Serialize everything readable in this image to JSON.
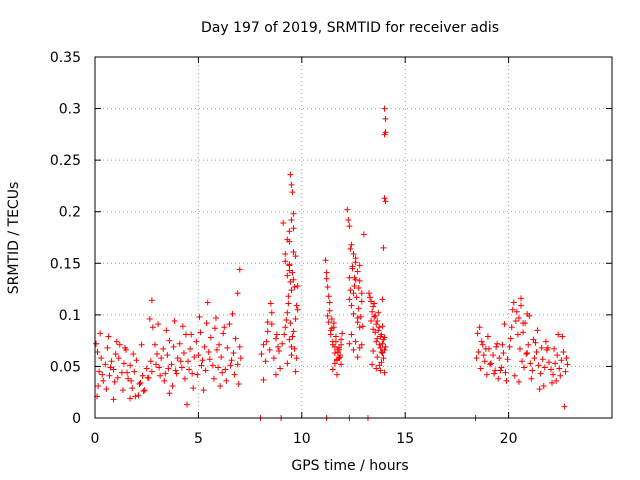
{
  "colors": {
    "series": "#ff0000",
    "grid": "#a0a0a0",
    "frame": "#000000"
  },
  "chart_data": {
    "type": "scatter",
    "title": "Day 197 of 2019, SRMTID for receiver adis",
    "xlabel": "GPS time / hours",
    "ylabel": "SRMTID / TECUs",
    "xlim": [
      0,
      25
    ],
    "ylim": [
      0,
      0.35
    ],
    "xticks": [
      0,
      5,
      10,
      15,
      20
    ],
    "xtick_labels": [
      "0",
      "5",
      "10",
      "15",
      "20"
    ],
    "yticks": [
      0,
      0.05,
      0.1,
      0.15,
      0.2,
      0.25,
      0.3,
      0.35
    ],
    "ytick_labels": [
      "0",
      "0.05",
      "0.1",
      "0.15",
      "0.2",
      "0.25",
      "0.3",
      "0.35"
    ],
    "grid": true,
    "marker": "+",
    "series": [
      {
        "name": "SRMTID",
        "x": [
          0.05,
          0.12,
          0.2,
          0.3,
          0.4,
          0.5,
          0.6,
          0.7,
          0.8,
          0.9,
          1.0,
          1.1,
          1.2,
          1.3,
          1.4,
          1.5,
          1.6,
          1.7,
          1.8,
          1.9,
          2.0,
          2.1,
          2.2,
          2.3,
          2.4,
          2.5,
          2.6,
          2.7,
          2.8,
          2.9,
          3.0,
          3.1,
          3.2,
          3.3,
          3.4,
          3.5,
          3.6,
          3.7,
          3.8,
          3.9,
          4.0,
          4.1,
          4.2,
          4.3,
          4.4,
          4.5,
          4.6,
          4.7,
          4.8,
          4.9,
          5.0,
          5.1,
          5.2,
          5.3,
          5.4,
          5.5,
          5.6,
          5.7,
          5.8,
          5.9,
          6.0,
          6.1,
          6.2,
          6.3,
          6.4,
          6.5,
          6.6,
          6.7,
          6.8,
          6.9,
          7.0,
          7.05,
          0.15,
          0.35,
          0.55,
          0.75,
          0.95,
          1.15,
          1.35,
          1.55,
          1.75,
          1.95,
          2.15,
          2.35,
          2.55,
          2.75,
          2.95,
          3.15,
          3.35,
          3.55,
          3.75,
          3.95,
          4.15,
          4.35,
          4.55,
          4.75,
          4.95,
          5.15,
          5.35,
          5.55,
          5.75,
          5.95,
          6.15,
          6.35,
          6.55,
          6.75,
          6.95,
          0.25,
          0.65,
          1.05,
          1.45,
          1.85,
          2.25,
          2.65,
          3.05,
          3.45,
          3.85,
          4.25,
          4.65,
          5.05,
          5.45,
          5.85,
          6.25,
          6.65,
          0.1,
          0.9,
          1.7,
          2.75,
          3.6,
          4.45,
          5.25,
          6.05,
          6.9,
          7.0,
          8.05,
          8.15,
          8.25,
          8.35,
          8.45,
          8.55,
          8.65,
          8.75,
          8.85,
          8.95,
          8.15,
          8.35,
          8.55,
          8.75,
          8.5,
          8.8,
          8.3,
          8.9,
          9.05,
          9.15,
          9.25,
          9.35,
          9.45,
          9.55,
          9.65,
          9.75,
          9.1,
          9.2,
          9.3,
          9.4,
          9.5,
          9.6,
          9.7,
          9.2,
          9.3,
          9.4,
          9.5,
          9.6,
          9.3,
          9.4,
          9.5,
          9.4,
          9.45,
          9.5,
          9.55,
          9.6,
          9.7,
          9.8,
          9.35,
          9.45,
          9.55,
          9.65,
          9.75,
          9.3,
          9.5,
          9.7,
          9.4,
          9.6,
          9.8,
          9.2,
          9.4,
          9.6,
          11.15,
          11.25,
          11.35,
          11.45,
          11.55,
          11.65,
          11.75,
          11.85,
          11.95,
          11.2,
          11.3,
          11.4,
          11.5,
          11.6,
          11.7,
          11.8,
          11.9,
          11.25,
          11.45,
          11.65,
          11.85,
          11.3,
          11.5,
          11.7,
          11.9,
          11.35,
          11.55,
          11.75,
          11.4,
          11.6,
          11.8,
          11.2,
          11.5,
          11.7,
          11.9,
          11.6,
          11.8,
          12.2,
          12.3,
          12.4,
          12.5,
          12.6,
          12.7,
          12.8,
          12.9,
          13.0,
          12.25,
          12.35,
          12.45,
          12.55,
          12.65,
          12.75,
          12.85,
          12.95,
          12.3,
          12.4,
          12.5,
          12.6,
          12.7,
          12.8,
          12.3,
          12.5,
          12.7,
          12.9,
          12.4,
          12.6,
          12.8,
          12.3,
          12.45,
          12.6,
          12.75,
          12.9,
          12.5,
          12.7,
          12.35,
          12.55,
          12.8,
          13.25,
          13.35,
          13.45,
          13.55,
          13.65,
          13.75,
          13.85,
          13.95,
          14.05,
          13.3,
          13.4,
          13.5,
          13.6,
          13.7,
          13.8,
          13.9,
          14.0,
          13.35,
          13.45,
          13.55,
          13.65,
          13.75,
          13.85,
          13.95,
          13.4,
          13.6,
          13.8,
          14.0,
          13.5,
          13.7,
          13.9,
          13.6,
          13.8,
          13.45,
          13.65,
          13.85,
          13.75,
          13.9,
          14.0,
          14.0,
          14.05,
          14.05,
          14.0,
          14.0,
          14.05,
          13.95,
          13.9,
          18.45,
          18.55,
          18.65,
          18.75,
          18.85,
          18.95,
          19.05,
          19.15,
          19.25,
          19.35,
          19.45,
          19.55,
          19.65,
          19.75,
          19.85,
          19.95,
          20.05,
          20.15,
          20.25,
          20.35,
          20.45,
          20.55,
          20.65,
          20.75,
          20.85,
          20.95,
          21.05,
          21.15,
          21.25,
          21.35,
          21.45,
          21.55,
          21.65,
          21.75,
          21.85,
          21.95,
          22.05,
          22.15,
          22.25,
          22.35,
          22.45,
          22.55,
          22.65,
          22.75,
          22.85,
          18.5,
          18.7,
          18.9,
          19.1,
          19.3,
          19.5,
          19.7,
          19.9,
          20.1,
          20.3,
          20.5,
          20.7,
          20.9,
          21.1,
          21.3,
          21.5,
          21.7,
          21.9,
          22.1,
          22.3,
          22.5,
          22.7,
          18.6,
          19.0,
          19.4,
          19.8,
          20.2,
          20.6,
          21.0,
          21.4,
          21.8,
          22.2,
          22.6,
          18.8,
          19.6,
          20.4,
          20.5,
          20.6,
          20.7,
          20.8,
          20.9,
          21.2,
          21.6,
          22.4,
          22.8,
          8.0,
          9.0,
          11.2,
          12.3,
          13.2,
          18.4
        ],
        "y": [
          0.072,
          0.064,
          0.045,
          0.058,
          0.036,
          0.052,
          0.068,
          0.041,
          0.055,
          0.047,
          0.062,
          0.039,
          0.071,
          0.044,
          0.053,
          0.066,
          0.038,
          0.051,
          0.029,
          0.045,
          0.056,
          0.022,
          0.034,
          0.041,
          0.027,
          0.048,
          0.039,
          0.055,
          0.088,
          0.071,
          0.062,
          0.049,
          0.058,
          0.067,
          0.043,
          0.061,
          0.075,
          0.052,
          0.069,
          0.046,
          0.058,
          0.072,
          0.049,
          0.063,
          0.081,
          0.055,
          0.067,
          0.043,
          0.059,
          0.074,
          0.061,
          0.083,
          0.056,
          0.069,
          0.092,
          0.064,
          0.078,
          0.051,
          0.087,
          0.066,
          0.071,
          0.059,
          0.082,
          0.047,
          0.068,
          0.091,
          0.056,
          0.063,
          0.077,
          0.052,
          0.069,
          0.058,
          0.031,
          0.042,
          0.028,
          0.049,
          0.035,
          0.058,
          0.027,
          0.044,
          0.036,
          0.021,
          0.033,
          0.026,
          0.039,
          0.045,
          0.052,
          0.041,
          0.036,
          0.048,
          0.031,
          0.043,
          0.055,
          0.038,
          0.047,
          0.029,
          0.042,
          0.051,
          0.046,
          0.057,
          0.038,
          0.049,
          0.044,
          0.036,
          0.051,
          0.042,
          0.033,
          0.082,
          0.079,
          0.074,
          0.068,
          0.062,
          0.071,
          0.096,
          0.091,
          0.085,
          0.094,
          0.089,
          0.081,
          0.098,
          0.112,
          0.097,
          0.088,
          0.101,
          0.021,
          0.018,
          0.019,
          0.114,
          0.024,
          0.013,
          0.027,
          0.031,
          0.121,
          0.144,
          0.062,
          0.071,
          0.055,
          0.084,
          0.066,
          0.091,
          0.058,
          0.077,
          0.069,
          0.048,
          0.037,
          0.093,
          0.102,
          0.042,
          0.111,
          0.081,
          0.074,
          0.065,
          0.072,
          0.081,
          0.095,
          0.118,
          0.132,
          0.141,
          0.127,
          0.109,
          0.189,
          0.152,
          0.138,
          0.149,
          0.124,
          0.161,
          0.096,
          0.088,
          0.102,
          0.076,
          0.069,
          0.084,
          0.173,
          0.181,
          0.192,
          0.143,
          0.236,
          0.226,
          0.219,
          0.198,
          0.157,
          0.128,
          0.111,
          0.092,
          0.079,
          0.067,
          0.058,
          0.053,
          0.061,
          0.045,
          0.148,
          0.134,
          0.105,
          0.159,
          0.171,
          0.184,
          0.153,
          0.127,
          0.104,
          0.096,
          0.088,
          0.074,
          0.066,
          0.059,
          0.082,
          0.141,
          0.118,
          0.085,
          0.071,
          0.063,
          0.057,
          0.068,
          0.076,
          0.099,
          0.087,
          0.079,
          0.061,
          0.093,
          0.074,
          0.056,
          0.052,
          0.112,
          0.092,
          0.064,
          0.081,
          0.069,
          0.058,
          0.135,
          0.047,
          0.042,
          0.071,
          0.053,
          0.066,
          0.202,
          0.186,
          0.168,
          0.159,
          0.151,
          0.142,
          0.133,
          0.121,
          0.178,
          0.192,
          0.164,
          0.147,
          0.128,
          0.117,
          0.106,
          0.098,
          0.089,
          0.115,
          0.109,
          0.121,
          0.134,
          0.097,
          0.088,
          0.072,
          0.066,
          0.059,
          0.071,
          0.081,
          0.074,
          0.068,
          0.136,
          0.145,
          0.155,
          0.126,
          0.113,
          0.101,
          0.093,
          0.124,
          0.136,
          0.148,
          0.121,
          0.113,
          0.108,
          0.099,
          0.094,
          0.088,
          0.081,
          0.076,
          0.069,
          0.117,
          0.103,
          0.098,
          0.091,
          0.085,
          0.079,
          0.072,
          0.066,
          0.094,
          0.086,
          0.083,
          0.077,
          0.071,
          0.064,
          0.058,
          0.052,
          0.048,
          0.046,
          0.044,
          0.111,
          0.102,
          0.089,
          0.074,
          0.068,
          0.065,
          0.059,
          0.054,
          0.051,
          0.063,
          0.078,
          0.3,
          0.29,
          0.277,
          0.275,
          0.213,
          0.21,
          0.165,
          0.115,
          0.058,
          0.064,
          0.048,
          0.071,
          0.055,
          0.042,
          0.067,
          0.053,
          0.061,
          0.046,
          0.072,
          0.058,
          0.049,
          0.063,
          0.044,
          0.057,
          0.069,
          0.088,
          0.112,
          0.094,
          0.081,
          0.067,
          0.055,
          0.049,
          0.062,
          0.071,
          0.053,
          0.046,
          0.058,
          0.064,
          0.051,
          0.043,
          0.057,
          0.049,
          0.066,
          0.054,
          0.047,
          0.042,
          0.053,
          0.061,
          0.048,
          0.056,
          0.064,
          0.045,
          0.052,
          0.082,
          0.074,
          0.067,
          0.052,
          0.043,
          0.038,
          0.071,
          0.036,
          0.077,
          0.041,
          0.035,
          0.092,
          0.063,
          0.038,
          0.073,
          0.028,
          0.031,
          0.068,
          0.034,
          0.036,
          0.041,
          0.011,
          0.088,
          0.079,
          0.069,
          0.091,
          0.105,
          0.116,
          0.099,
          0.085,
          0.074,
          0.067,
          0.079,
          0.061,
          0.046,
          0.103,
          0.097,
          0.109,
          0.083,
          0.092,
          0.101,
          0.076,
          0.068,
          0.081,
          0.058,
          0.0,
          0.0,
          0.0,
          0.0,
          0.0,
          0.0
        ]
      }
    ]
  }
}
